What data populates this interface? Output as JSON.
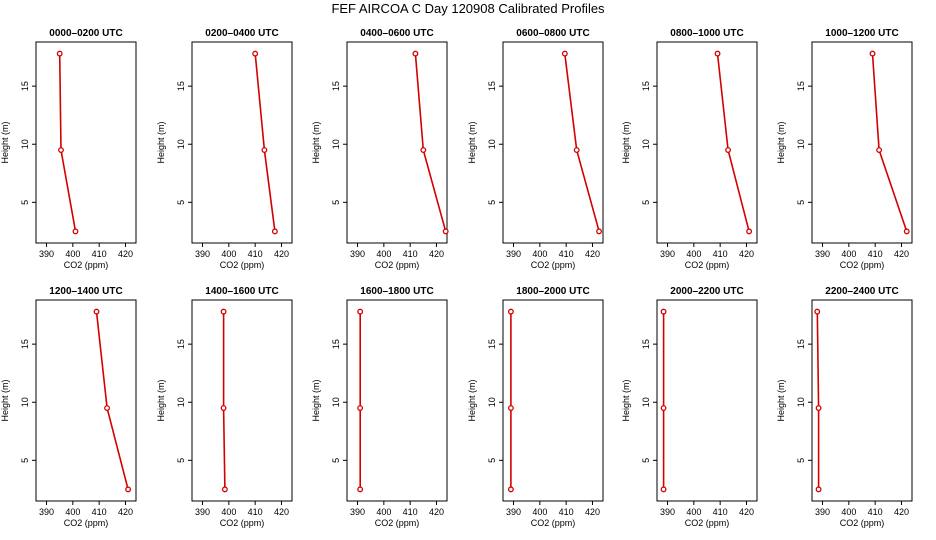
{
  "figure": {
    "title": "FEF AIRCOA C  Day 120908  Calibrated Profiles",
    "colors": {
      "line": "#d40000",
      "axis": "#000000",
      "background": "#ffffff"
    }
  },
  "chart_data": [
    {
      "type": "line",
      "title": "0000–0200 UTC",
      "xlabel": "CO2 (ppm)",
      "ylabel": "Height (m)",
      "xlim": [
        386,
        424
      ],
      "ylim": [
        1.5,
        18.8
      ],
      "xticks": [
        390,
        400,
        410,
        420
      ],
      "yticks": [
        5,
        10,
        15
      ],
      "series": [
        {
          "name": "profile",
          "x": [
            401.0,
            395.5,
            395.0
          ],
          "y": [
            2.5,
            9.5,
            17.8
          ]
        }
      ]
    },
    {
      "type": "line",
      "title": "0200–0400 UTC",
      "xlabel": "CO2 (ppm)",
      "ylabel": "Height (m)",
      "xlim": [
        386,
        424
      ],
      "ylim": [
        1.5,
        18.8
      ],
      "xticks": [
        390,
        400,
        410,
        420
      ],
      "yticks": [
        5,
        10,
        15
      ],
      "series": [
        {
          "name": "profile",
          "x": [
            417.5,
            413.5,
            410.0
          ],
          "y": [
            2.5,
            9.5,
            17.8
          ]
        }
      ]
    },
    {
      "type": "line",
      "title": "0400–0600 UTC",
      "xlabel": "CO2 (ppm)",
      "ylabel": "Height (m)",
      "xlim": [
        386,
        424
      ],
      "ylim": [
        1.5,
        18.8
      ],
      "xticks": [
        390,
        400,
        410,
        420
      ],
      "yticks": [
        5,
        10,
        15
      ],
      "series": [
        {
          "name": "profile",
          "x": [
            423.5,
            415.0,
            412.0
          ],
          "y": [
            2.5,
            9.5,
            17.8
          ]
        }
      ]
    },
    {
      "type": "line",
      "title": "0600–0800 UTC",
      "xlabel": "CO2 (ppm)",
      "ylabel": "Height (m)",
      "xlim": [
        386,
        424
      ],
      "ylim": [
        1.5,
        18.8
      ],
      "xticks": [
        390,
        400,
        410,
        420
      ],
      "yticks": [
        5,
        10,
        15
      ],
      "series": [
        {
          "name": "profile",
          "x": [
            422.5,
            414.0,
            409.5
          ],
          "y": [
            2.5,
            9.5,
            17.8
          ]
        }
      ]
    },
    {
      "type": "line",
      "title": "0800–1000 UTC",
      "xlabel": "CO2 (ppm)",
      "ylabel": "Height (m)",
      "xlim": [
        386,
        424
      ],
      "ylim": [
        1.5,
        18.8
      ],
      "xticks": [
        390,
        400,
        410,
        420
      ],
      "yticks": [
        5,
        10,
        15
      ],
      "series": [
        {
          "name": "profile",
          "x": [
            421.0,
            413.0,
            409.0
          ],
          "y": [
            2.5,
            9.5,
            17.8
          ]
        }
      ]
    },
    {
      "type": "line",
      "title": "1000–1200 UTC",
      "xlabel": "CO2 (ppm)",
      "ylabel": "Height (m)",
      "xlim": [
        386,
        424
      ],
      "ylim": [
        1.5,
        18.8
      ],
      "xticks": [
        390,
        400,
        410,
        420
      ],
      "yticks": [
        5,
        10,
        15
      ],
      "series": [
        {
          "name": "profile",
          "x": [
            422.0,
            411.5,
            409.0
          ],
          "y": [
            2.5,
            9.5,
            17.8
          ]
        }
      ]
    },
    {
      "type": "line",
      "title": "1200–1400 UTC",
      "xlabel": "CO2 (ppm)",
      "ylabel": "Height (m)",
      "xlim": [
        386,
        424
      ],
      "ylim": [
        1.5,
        18.8
      ],
      "xticks": [
        390,
        400,
        410,
        420
      ],
      "yticks": [
        5,
        10,
        15
      ],
      "series": [
        {
          "name": "profile",
          "x": [
            421.0,
            413.0,
            409.0
          ],
          "y": [
            2.5,
            9.5,
            17.8
          ]
        }
      ]
    },
    {
      "type": "line",
      "title": "1400–1600 UTC",
      "xlabel": "CO2 (ppm)",
      "ylabel": "Height (m)",
      "xlim": [
        386,
        424
      ],
      "ylim": [
        1.5,
        18.8
      ],
      "xticks": [
        390,
        400,
        410,
        420
      ],
      "yticks": [
        5,
        10,
        15
      ],
      "series": [
        {
          "name": "profile",
          "x": [
            398.5,
            398.0,
            398.0
          ],
          "y": [
            2.5,
            9.5,
            17.8
          ]
        }
      ]
    },
    {
      "type": "line",
      "title": "1600–1800 UTC",
      "xlabel": "CO2 (ppm)",
      "ylabel": "Height (m)",
      "xlim": [
        386,
        424
      ],
      "ylim": [
        1.5,
        18.8
      ],
      "xticks": [
        390,
        400,
        410,
        420
      ],
      "yticks": [
        5,
        10,
        15
      ],
      "series": [
        {
          "name": "profile",
          "x": [
            391.0,
            391.0,
            391.0
          ],
          "y": [
            2.5,
            9.5,
            17.8
          ]
        }
      ]
    },
    {
      "type": "line",
      "title": "1800–2000 UTC",
      "xlabel": "CO2 (ppm)",
      "ylabel": "Height (m)",
      "xlim": [
        386,
        424
      ],
      "ylim": [
        1.5,
        18.8
      ],
      "xticks": [
        390,
        400,
        410,
        420
      ],
      "yticks": [
        5,
        10,
        15
      ],
      "series": [
        {
          "name": "profile",
          "x": [
            389.0,
            389.0,
            389.0
          ],
          "y": [
            2.5,
            9.5,
            17.8
          ]
        }
      ]
    },
    {
      "type": "line",
      "title": "2000–2200 UTC",
      "xlabel": "CO2 (ppm)",
      "ylabel": "Height (m)",
      "xlim": [
        386,
        424
      ],
      "ylim": [
        1.5,
        18.8
      ],
      "xticks": [
        390,
        400,
        410,
        420
      ],
      "yticks": [
        5,
        10,
        15
      ],
      "series": [
        {
          "name": "profile",
          "x": [
            388.5,
            388.5,
            388.5
          ],
          "y": [
            2.5,
            9.5,
            17.8
          ]
        }
      ]
    },
    {
      "type": "line",
      "title": "2200–2400 UTC",
      "xlabel": "CO2 (ppm)",
      "ylabel": "Height (m)",
      "xlim": [
        386,
        424
      ],
      "ylim": [
        1.5,
        18.8
      ],
      "xticks": [
        390,
        400,
        410,
        420
      ],
      "yticks": [
        5,
        10,
        15
      ],
      "series": [
        {
          "name": "profile",
          "x": [
            388.5,
            388.5,
            388.0
          ],
          "y": [
            2.5,
            9.5,
            17.8
          ]
        }
      ]
    }
  ]
}
